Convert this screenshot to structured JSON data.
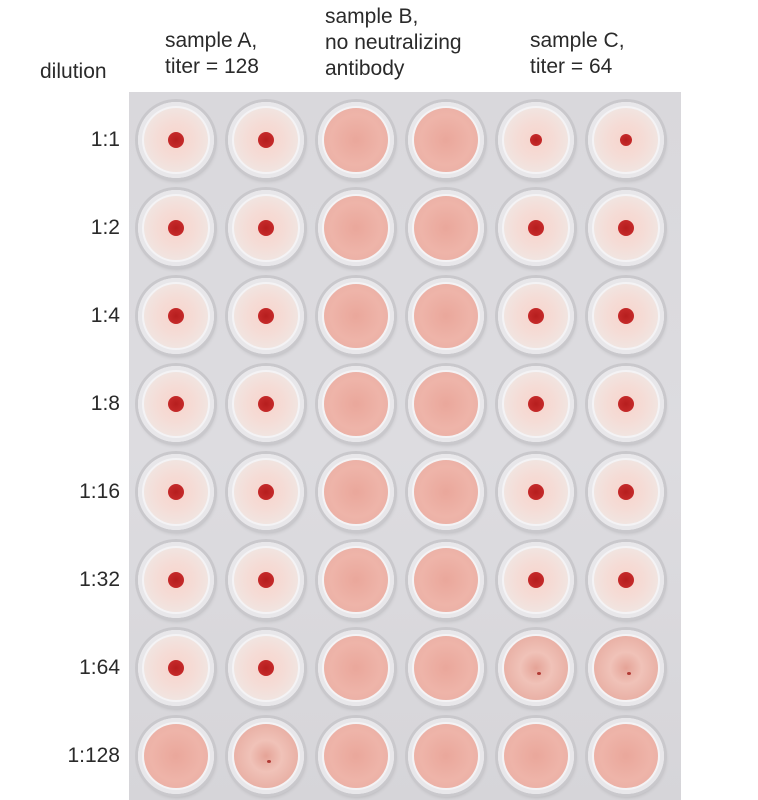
{
  "headers": {
    "dilution": "dilution",
    "sample_a": [
      "sample A,",
      "titer = 128"
    ],
    "sample_b": [
      "sample B,",
      "no neutralizing",
      "antibody"
    ],
    "sample_c": [
      "sample C,",
      "titer = 64"
    ]
  },
  "rows": [
    {
      "label": "1:1",
      "wells": [
        "button",
        "button",
        "lattice",
        "lattice",
        "button",
        "button"
      ]
    },
    {
      "label": "1:2",
      "wells": [
        "button",
        "button",
        "lattice",
        "lattice",
        "button",
        "button"
      ]
    },
    {
      "label": "1:4",
      "wells": [
        "button",
        "button",
        "lattice",
        "lattice",
        "button",
        "button"
      ]
    },
    {
      "label": "1:8",
      "wells": [
        "button",
        "button",
        "lattice",
        "lattice",
        "button",
        "button"
      ]
    },
    {
      "label": "1:16",
      "wells": [
        "button",
        "button",
        "lattice",
        "lattice",
        "button",
        "button"
      ]
    },
    {
      "label": "1:32",
      "wells": [
        "button",
        "button",
        "lattice",
        "lattice",
        "button",
        "button"
      ]
    },
    {
      "label": "1:64",
      "wells": [
        "button",
        "button",
        "lattice",
        "lattice",
        "partial",
        "partial"
      ]
    },
    {
      "label": "1:128",
      "wells": [
        "lattice",
        "partial",
        "lattice",
        "lattice",
        "lattice",
        "lattice"
      ]
    }
  ],
  "colors": {
    "button_dot": "#c0262a",
    "lattice": "#ebb0a5",
    "plate": "#dad9dd"
  }
}
